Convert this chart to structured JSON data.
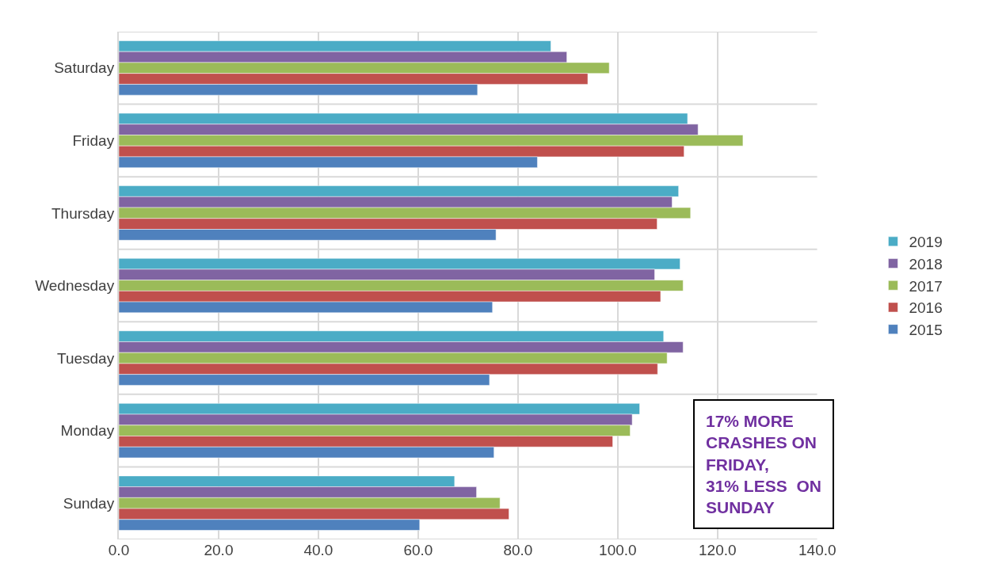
{
  "chart_data": {
    "type": "bar",
    "orientation": "horizontal",
    "categories": [
      "Saturday",
      "Friday",
      "Thursday",
      "Wednesday",
      "Tuesday",
      "Monday",
      "Sunday"
    ],
    "series": [
      {
        "name": "2019",
        "color": "#4bacc6",
        "values": [
          86.6,
          114.0,
          112.2,
          112.5,
          109.2,
          104.4,
          67.3
        ]
      },
      {
        "name": "2018",
        "color": "#8064a2",
        "values": [
          89.8,
          116.1,
          110.9,
          107.4,
          113.1,
          102.9,
          71.7
        ]
      },
      {
        "name": "2017",
        "color": "#9bbb59",
        "values": [
          98.3,
          125.1,
          114.6,
          113.1,
          109.9,
          102.5,
          76.4
        ]
      },
      {
        "name": "2016",
        "color": "#c0504d",
        "values": [
          94.0,
          113.3,
          107.9,
          108.6,
          108.0,
          99.0,
          78.2
        ]
      },
      {
        "name": "2015",
        "color": "#4f81bd",
        "values": [
          71.9,
          83.9,
          75.6,
          74.9,
          74.3,
          75.2,
          60.3
        ]
      }
    ],
    "xlim": [
      0,
      140
    ],
    "xticks": [
      {
        "value": 0,
        "label": "0.0"
      },
      {
        "value": 20,
        "label": "20.0"
      },
      {
        "value": 40,
        "label": "40.0"
      },
      {
        "value": 60,
        "label": "60.0"
      },
      {
        "value": 80,
        "label": "80.0"
      },
      {
        "value": 100,
        "label": "100.0"
      },
      {
        "value": 120,
        "label": "120.0"
      },
      {
        "value": 140,
        "label": "140.0"
      }
    ],
    "grid": true,
    "legend": "right",
    "annotations": [
      "17% MORE\nCRASHES ON\nFRIDAY,\n31% LESS  ON\nSUNDAY"
    ]
  }
}
